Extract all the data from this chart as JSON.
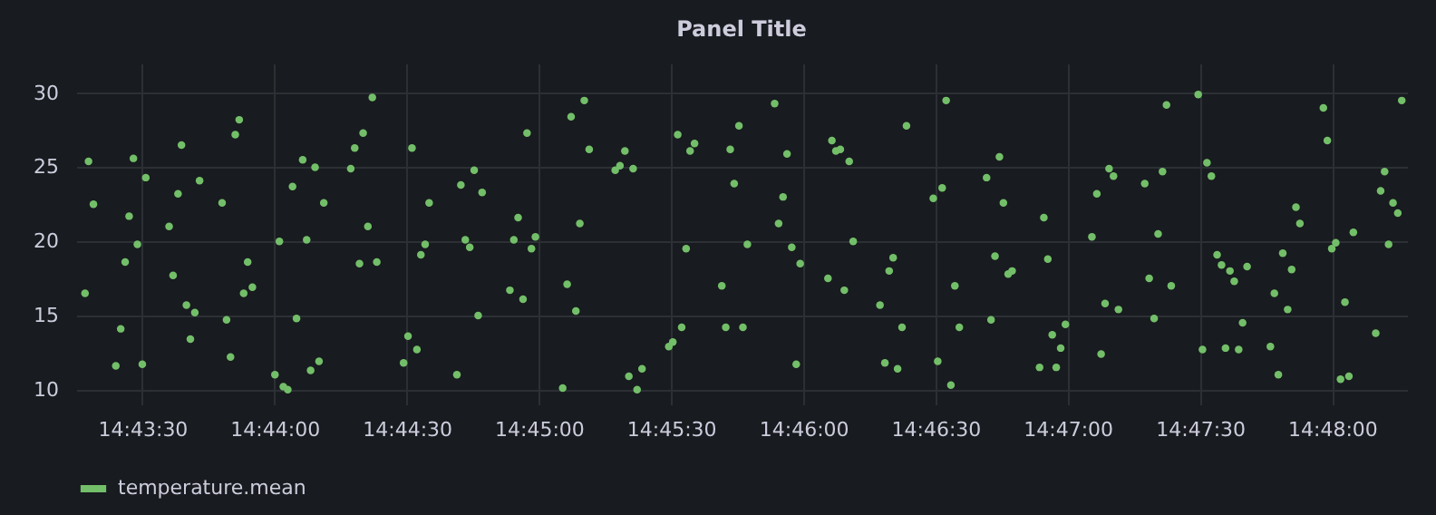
{
  "chart_data": {
    "type": "scatter",
    "title": "Panel Title",
    "x": [
      14.72139,
      14.72161,
      14.72192,
      14.72333,
      14.72364,
      14.72392,
      14.72417,
      14.72444,
      14.72469,
      14.725,
      14.72522,
      14.72669,
      14.72694,
      14.72725,
      14.72747,
      14.72778,
      14.72803,
      14.72831,
      14.72861,
      14.73003,
      14.73031,
      14.73056,
      14.73086,
      14.73111,
      14.73139,
      14.73164,
      14.73194,
      14.73336,
      14.73364,
      14.73389,
      14.73417,
      14.73447,
      14.73472,
      14.73511,
      14.73536,
      14.73561,
      14.73589,
      14.73614,
      14.73644,
      14.73814,
      14.73839,
      14.73869,
      14.73892,
      14.73922,
      14.7395,
      14.73978,
      14.74147,
      14.74175,
      14.742,
      14.74231,
      14.74256,
      14.74283,
      14.74308,
      14.74483,
      14.74508,
      14.74536,
      14.74564,
      14.74592,
      14.74617,
      14.74642,
      14.74817,
      14.74842,
      14.74869,
      14.749,
      14.74925,
      14.74953,
      14.74978,
      14.7515,
      14.75178,
      14.75203,
      14.75233,
      14.75258,
      14.75286,
      14.75317,
      14.75481,
      14.75511,
      14.75542,
      14.75567,
      14.75594,
      14.75619,
      14.7565,
      14.75819,
      14.75844,
      14.75875,
      14.759,
      14.75928,
      14.75953,
      14.75981,
      14.76153,
      14.76178,
      14.76206,
      14.76231,
      14.76261,
      14.76286,
      14.76314,
      14.76486,
      14.76511,
      14.76539,
      14.76564,
      14.76594,
      14.76622,
      14.76647,
      14.76822,
      14.76847,
      14.76872,
      14.769,
      14.76925,
      14.76956,
      14.76981,
      14.7715,
      14.77181,
      14.77208,
      14.77233,
      14.77261,
      14.77289,
      14.77317,
      14.77486,
      14.77514,
      14.77542,
      14.77567,
      14.77597,
      14.77622,
      14.7765,
      14.77822,
      14.7785,
      14.77875,
      14.77903,
      14.77928,
      14.77958,
      14.77983,
      14.78156,
      14.78183,
      14.78208,
      14.78236,
      14.78261,
      14.78289,
      14.78319,
      14.78486,
      14.78517,
      14.78544,
      14.78569,
      14.78594,
      14.78622,
      14.78653,
      14.78819,
      14.78847,
      14.78878,
      14.78903,
      14.78931,
      14.78956,
      14.78986,
      14.79156,
      14.79183,
      14.79211,
      14.79239,
      14.79275,
      14.79303,
      14.79328,
      14.79356,
      14.79383,
      14.79411,
      14.79436,
      14.79464,
      14.79611,
      14.79636,
      14.79661,
      14.79689,
      14.7972,
      14.79745,
      14.79772,
      14.79797,
      14.79945,
      14.7997,
      14.79998,
      14.80023,
      14.80053,
      14.80081,
      14.80106,
      14.80134,
      14.80275,
      14.80306,
      14.80331,
      14.80356,
      14.80384,
      14.80414,
      14.80439
    ],
    "series": [
      {
        "name": "temperature.mean",
        "color": "#73bf69",
        "values": [
          16.5,
          25.4,
          22.5,
          11.6,
          14.1,
          18.6,
          21.7,
          25.6,
          19.8,
          11.7,
          24.3,
          21.0,
          17.7,
          23.2,
          26.5,
          15.7,
          13.4,
          15.2,
          24.1,
          22.6,
          14.7,
          12.2,
          27.2,
          28.2,
          16.5,
          18.6,
          16.9,
          11.0,
          20.0,
          10.2,
          10.0,
          23.7,
          14.8,
          25.5,
          20.1,
          11.3,
          25.0,
          11.9,
          22.6,
          24.9,
          26.3,
          18.5,
          27.3,
          21.0,
          29.7,
          18.6,
          11.8,
          13.6,
          26.3,
          12.7,
          19.1,
          19.8,
          22.6,
          11.0,
          23.8,
          20.1,
          19.6,
          24.8,
          15.0,
          23.3,
          16.7,
          20.1,
          21.6,
          16.1,
          27.3,
          19.5,
          20.3,
          10.1,
          17.1,
          28.4,
          15.3,
          21.2,
          29.5,
          26.2,
          24.8,
          25.1,
          26.1,
          10.9,
          24.9,
          10.0,
          11.4,
          12.9,
          13.2,
          27.2,
          14.2,
          19.5,
          26.1,
          26.6,
          17.0,
          14.2,
          26.2,
          23.9,
          27.8,
          14.2,
          19.8,
          29.3,
          21.2,
          23.0,
          25.9,
          19.6,
          11.7,
          18.5,
          17.5,
          26.8,
          26.1,
          26.2,
          16.7,
          25.4,
          20.0,
          15.7,
          11.8,
          18.0,
          18.9,
          11.4,
          14.2,
          27.8,
          22.9,
          11.9,
          23.6,
          29.5,
          10.3,
          17.0,
          14.2,
          24.3,
          14.7,
          19.0,
          25.7,
          22.6,
          17.8,
          18.0,
          11.5,
          21.6,
          18.8,
          13.7,
          11.5,
          12.8,
          14.4,
          20.3,
          23.2,
          12.4,
          15.8,
          24.9,
          24.4,
          15.4,
          23.9,
          17.5,
          14.8,
          20.5,
          24.7,
          29.2,
          17.0,
          29.9,
          12.7,
          25.3,
          24.4,
          19.1,
          18.4,
          12.8,
          18.0,
          17.3,
          12.7,
          14.5,
          18.3,
          12.9,
          16.5,
          11.0,
          19.2,
          15.4,
          18.1,
          22.3,
          21.2,
          29.0,
          26.8,
          19.5,
          19.9,
          10.7,
          15.9,
          10.9,
          20.6,
          13.8,
          23.4,
          24.7,
          19.8,
          22.6,
          21.9,
          29.5
        ]
      }
    ],
    "xlim": [
      14.72083,
      14.80472
    ],
    "xticks": [
      {
        "value": 14.725,
        "label": "14:43:30"
      },
      {
        "value": 14.73333,
        "label": "14:44:00"
      },
      {
        "value": 14.74167,
        "label": "14:44:30"
      },
      {
        "value": 14.75,
        "label": "14:45:00"
      },
      {
        "value": 14.75833,
        "label": "14:45:30"
      },
      {
        "value": 14.76667,
        "label": "14:46:00"
      },
      {
        "value": 14.775,
        "label": "14:46:30"
      },
      {
        "value": 14.78333,
        "label": "14:47:00"
      },
      {
        "value": 14.79167,
        "label": "14:47:30"
      },
      {
        "value": 14.8,
        "label": "14:48:00"
      }
    ],
    "ylim": [
      9,
      32
    ],
    "yticks": [
      10,
      15,
      20,
      25,
      30
    ],
    "grid": true,
    "legend": "bottom left",
    "marker": "circle"
  }
}
